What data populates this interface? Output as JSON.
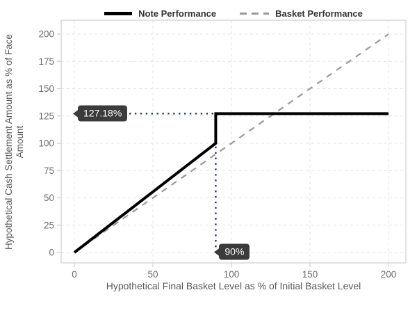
{
  "chart_data": {
    "type": "line",
    "title": "",
    "xlabel": "Hypothetical Final Basket Level as % of Initial Basket Level",
    "ylabel": "Hypothetical Cash Settlement Amount as % of Face Amount",
    "xlim": [
      0,
      200
    ],
    "ylim": [
      0,
      200
    ],
    "x_ticks": [
      0,
      50,
      100,
      150,
      200
    ],
    "y_ticks": [
      0,
      25,
      50,
      75,
      100,
      125,
      150,
      175,
      200
    ],
    "grid": "dashed",
    "legend_position": "top-center",
    "series": [
      {
        "name": "Note Performance",
        "style": "solid",
        "color": "#000000",
        "width": 4,
        "points": [
          [
            0,
            0
          ],
          [
            90,
            100
          ],
          [
            90,
            127.18
          ],
          [
            200,
            127.18
          ]
        ]
      },
      {
        "name": "Basket Performance",
        "style": "dashed",
        "color": "#999999",
        "width": 2.2,
        "points": [
          [
            0,
            0
          ],
          [
            200,
            200
          ]
        ]
      }
    ],
    "annotations": [
      {
        "label": "127.18%",
        "type": "horizontal-dotted",
        "y": 127.18,
        "x_from": 0,
        "x_to": 90
      },
      {
        "label": "90%",
        "type": "vertical-dotted",
        "x": 90,
        "y_from": 127.18,
        "y_to": 0
      }
    ],
    "annotation_box_color": "#3b3b3b",
    "annotation_text_color": "#ffffff",
    "dotted_line_color": "#26395e",
    "grid_color": "#e4e4e4",
    "panel_border_color": "#cfcfcf",
    "tick_label_color": "#6b6b6b",
    "axis_title_color": "#595959",
    "background_color": "#ffffff"
  }
}
